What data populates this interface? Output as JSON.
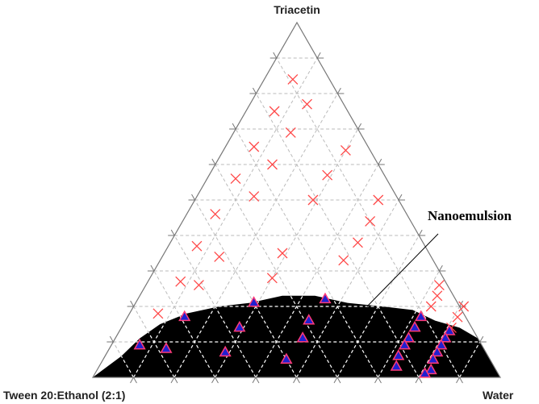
{
  "chart_data": {
    "type": "ternary",
    "corner_labels": {
      "top": "Triacetin",
      "left": "Tween 20:Ethanol (2:1)",
      "right": "Water"
    },
    "annotation": "Nanoemulsion",
    "ticks": [
      10,
      20,
      30,
      40,
      50,
      60,
      70,
      80,
      90
    ],
    "grid": true,
    "region": {
      "color": "#000000",
      "triacetin": [
        0,
        6,
        11,
        15,
        18,
        20,
        21,
        23,
        23,
        21,
        20,
        19,
        16,
        14,
        11,
        6,
        0
      ],
      "water": [
        0,
        4,
        6,
        9,
        14,
        21,
        28,
        35,
        43,
        52,
        61,
        69,
        76,
        83,
        89,
        94,
        100
      ]
    },
    "series": [
      {
        "marker": "x",
        "color": "#ff4848",
        "triacetin": [
          84,
          77,
          75,
          69,
          65,
          64,
          60,
          56,
          57,
          51,
          50,
          50,
          46,
          44,
          37,
          35,
          38,
          34,
          33,
          27,
          26,
          28,
          26,
          23,
          20,
          18,
          20,
          17,
          14
        ],
        "water": [
          7,
          14,
          7,
          14,
          7,
          30,
          14,
          7,
          29,
          14,
          29,
          45,
          7,
          46,
          7,
          29,
          46,
          14,
          45,
          8,
          13,
          30,
          72,
          73,
          73,
          7,
          81,
          81,
          81
        ]
      },
      {
        "marker": "triangle",
        "color": "#2020d0",
        "edge_color": "#ff3a78",
        "triacetin": [
          21,
          22,
          17,
          17,
          14,
          16,
          14,
          13,
          9,
          8,
          11,
          7,
          11,
          11,
          9,
          9,
          5,
          6,
          7,
          3,
          5,
          2,
          1
        ],
        "water": [
          29,
          46,
          14,
          72,
          29,
          45,
          72,
          81,
          7,
          14,
          46,
          29,
          72,
          81,
          72,
          81,
          45,
          72,
          81,
          73,
          81,
          82,
          81
        ]
      }
    ]
  }
}
